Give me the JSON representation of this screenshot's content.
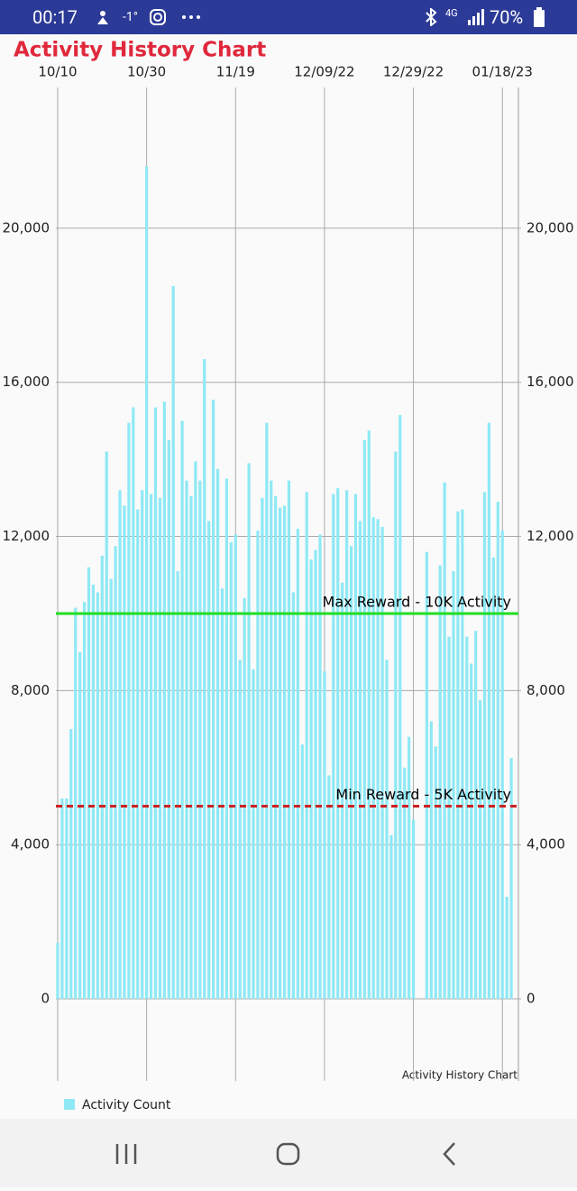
{
  "status_bar": {
    "time": "00:17",
    "temperature": "-1°",
    "network": "4G",
    "battery": "70%"
  },
  "chart_data": {
    "type": "bar",
    "title": "Activity History Chart",
    "description": "Activity History Chart",
    "x": [
      0,
      1,
      2,
      3,
      4,
      5,
      6,
      7,
      8,
      9,
      10,
      11,
      12,
      13,
      14,
      15,
      16,
      17,
      18,
      19,
      20,
      21,
      22,
      23,
      24,
      25,
      26,
      27,
      28,
      29,
      30,
      31,
      32,
      33,
      34,
      35,
      36,
      37,
      38,
      39,
      40,
      41,
      42,
      43,
      44,
      45,
      46,
      47,
      48,
      49,
      50,
      51,
      52,
      53,
      54,
      55,
      56,
      57,
      58,
      59,
      60,
      61,
      62,
      63,
      64,
      65,
      66,
      67,
      68,
      69,
      70,
      71,
      72,
      73,
      74,
      75,
      76,
      77,
      78,
      79,
      80,
      81,
      82,
      83,
      84,
      85,
      86,
      87,
      88,
      89,
      90,
      91,
      92,
      93,
      94,
      95,
      96,
      97,
      98,
      99,
      100,
      101,
      102
    ],
    "series": [
      {
        "name": "Activity Count",
        "color": "#8ee9f5",
        "values": [
          1450,
          5200,
          5200,
          7000,
          10150,
          9000,
          10300,
          11200,
          10750,
          10550,
          11500,
          14200,
          10900,
          11750,
          13200,
          12800,
          14950,
          15350,
          12700,
          13200,
          21600,
          13100,
          15350,
          13000,
          15500,
          14500,
          18500,
          11100,
          15000,
          13450,
          13050,
          13950,
          13450,
          16600,
          12400,
          15550,
          13750,
          10650,
          13500,
          11850,
          12050,
          8800,
          10400,
          13900,
          8550,
          12150,
          13000,
          14950,
          13450,
          13050,
          12750,
          12800,
          13450,
          10550,
          12200,
          6600,
          13150,
          11400,
          11650,
          12050,
          8500,
          5800,
          13100,
          13250,
          10800,
          13200,
          11750,
          13100,
          12400,
          14500,
          14750,
          12500,
          12450,
          12250,
          8800,
          4250,
          14200,
          15150,
          6000,
          6800,
          4650,
          0,
          0,
          11600,
          7200,
          6550,
          11250,
          13400,
          9400,
          11100,
          12650,
          12700,
          9400,
          8700,
          9550,
          7750,
          13150,
          14950,
          11450,
          12900,
          12150,
          2650,
          6250
        ]
      }
    ],
    "xlim": [
      -0.4,
      103.6
    ],
    "xticks": [
      {
        "value": 0,
        "label": "10/10"
      },
      {
        "value": 20,
        "label": "10/30"
      },
      {
        "value": 40,
        "label": "11/19"
      },
      {
        "value": 60,
        "label": "12/09/22"
      },
      {
        "value": 80,
        "label": "12/29/22"
      },
      {
        "value": 100,
        "label": "01/18/23"
      }
    ],
    "ylim": [
      -2130,
      23650
    ],
    "yticks": [
      0,
      {
        "value": 4000,
        "label": "4,000"
      },
      {
        "value": 8000,
        "label": "8,000"
      },
      {
        "value": 12000,
        "label": "12,000"
      },
      {
        "value": 16000,
        "label": "16,000"
      },
      {
        "value": 20000,
        "label": "20,000"
      }
    ],
    "y2lim": [
      -2130,
      23650
    ],
    "y2ticks": [
      0,
      {
        "value": 4000,
        "label": "4,000"
      },
      {
        "value": 8000,
        "label": "8,000"
      },
      {
        "value": 12000,
        "label": "12,000"
      },
      {
        "value": 16000,
        "label": "16,000"
      },
      {
        "value": 20000,
        "label": "20,000"
      }
    ],
    "limit_lines": [
      {
        "value": 10000,
        "label": "Max Reward - 10K Activity",
        "color": "#22dd22",
        "style": "solid"
      },
      {
        "value": 5000,
        "label": "Min Reward - 5K Activity",
        "color": "#cc2222",
        "style": "dashed"
      }
    ],
    "grid": true
  }
}
